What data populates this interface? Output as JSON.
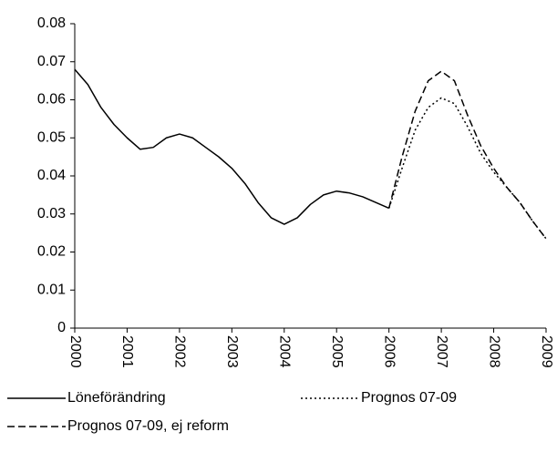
{
  "chart_data": {
    "type": "line",
    "x": [
      2000,
      2000.25,
      2000.5,
      2000.75,
      2001,
      2001.25,
      2001.5,
      2001.75,
      2002,
      2002.25,
      2002.5,
      2002.75,
      2003,
      2003.25,
      2003.5,
      2003.75,
      2004,
      2004.25,
      2004.5,
      2004.75,
      2005,
      2005.25,
      2005.5,
      2005.75,
      2006,
      2006.25,
      2006.5,
      2006.75,
      2007,
      2007.25,
      2007.5,
      2007.75,
      2008,
      2008.25,
      2008.5,
      2008.75,
      2009
    ],
    "series": [
      {
        "name": "Löneförändring",
        "color": "#000000",
        "dash": "solid",
        "values": [
          0.068,
          0.064,
          0.058,
          0.0535,
          0.05,
          0.047,
          0.0475,
          0.05,
          0.051,
          0.05,
          0.0475,
          0.045,
          0.042,
          0.038,
          0.033,
          0.029,
          0.0273,
          0.029,
          0.0325,
          0.035,
          0.036,
          0.0355,
          0.0345,
          0.033,
          0.0315,
          null,
          null,
          null,
          null,
          null,
          null,
          null,
          null,
          null,
          null,
          null,
          null
        ]
      },
      {
        "name": "Prognos 07-09",
        "color": "#000000",
        "dash": "dotted",
        "values": [
          null,
          null,
          null,
          null,
          null,
          null,
          null,
          null,
          null,
          null,
          null,
          null,
          null,
          null,
          null,
          null,
          null,
          null,
          null,
          null,
          null,
          null,
          null,
          null,
          0.0315,
          0.042,
          0.052,
          0.058,
          0.0605,
          0.059,
          0.053,
          0.046,
          0.041,
          0.037,
          0.033,
          0.028,
          0.0235
        ]
      },
      {
        "name": "Prognos 07-09, ej reform",
        "color": "#000000",
        "dash": "dashed",
        "values": [
          null,
          null,
          null,
          null,
          null,
          null,
          null,
          null,
          null,
          null,
          null,
          null,
          null,
          null,
          null,
          null,
          null,
          null,
          null,
          null,
          null,
          null,
          null,
          null,
          0.0315,
          0.045,
          0.057,
          0.065,
          0.0675,
          0.065,
          0.056,
          0.048,
          0.042,
          0.037,
          0.033,
          0.028,
          0.0235
        ]
      }
    ],
    "xlim": [
      2000,
      2009
    ],
    "xticks": [
      2000,
      2001,
      2002,
      2003,
      2004,
      2005,
      2006,
      2007,
      2008,
      2009
    ],
    "ylim": [
      0,
      0.08
    ],
    "yticks": [
      0,
      0.01,
      0.02,
      0.03,
      0.04,
      0.05,
      0.06,
      0.07,
      0.08
    ],
    "grid": false,
    "legend": "bottom"
  }
}
